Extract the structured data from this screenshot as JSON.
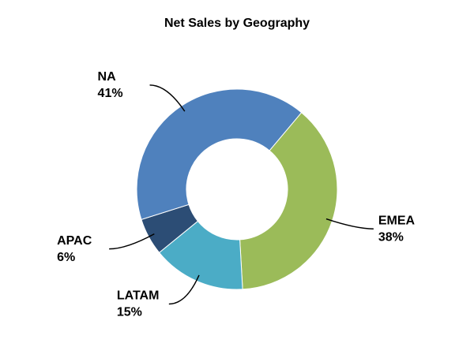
{
  "chart_data": {
    "type": "donut",
    "title": "Net Sales by Geography",
    "categories": [
      "EMEA",
      "LATAM",
      "APAC",
      "NA"
    ],
    "values": [
      38,
      15,
      6,
      41
    ],
    "value_labels": [
      "38%",
      "15%",
      "6%",
      "41%"
    ],
    "colors": [
      "#9bbb59",
      "#4bacc6",
      "#2c4d75",
      "#4f81bd"
    ]
  }
}
